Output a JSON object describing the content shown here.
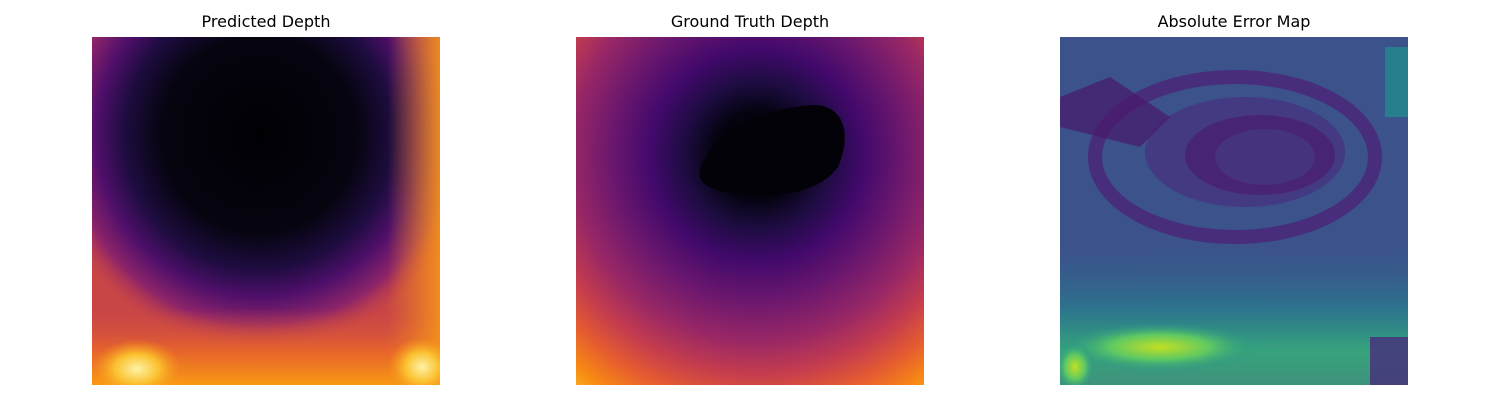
{
  "chart_data": [
    {
      "type": "heatmap",
      "title": "Predicted Depth",
      "colormap": "inferno",
      "axes": "off"
    },
    {
      "type": "heatmap",
      "title": "Ground Truth Depth",
      "colormap": "inferno",
      "axes": "off"
    },
    {
      "type": "heatmap",
      "title": "Absolute Error Map",
      "colormap": "viridis",
      "axes": "off"
    }
  ]
}
